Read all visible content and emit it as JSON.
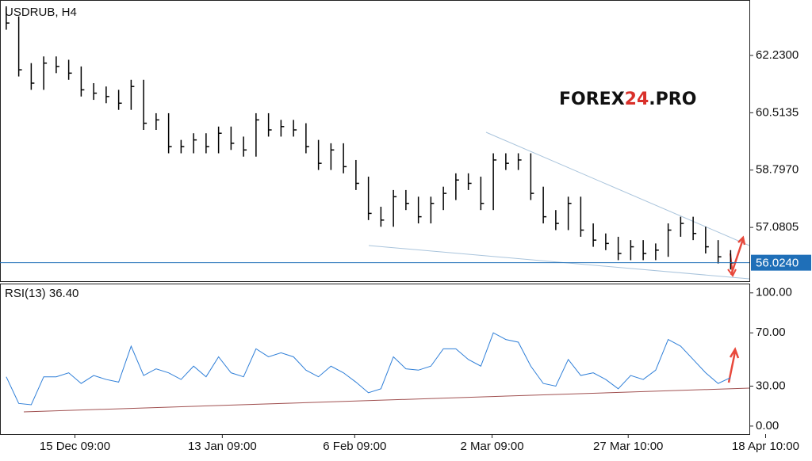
{
  "chart_data": [
    {
      "type": "ohlc",
      "title": "USDRUB, H4",
      "watermark": [
        "FOREX",
        "24",
        ".PRO"
      ],
      "color": "#000000",
      "high": [
        63.7,
        63.4,
        62.0,
        62.2,
        62.2,
        62.1,
        61.9,
        61.4,
        61.3,
        61.2,
        61.5,
        61.5,
        60.5,
        60.5,
        59.7,
        59.9,
        59.9,
        60.1,
        60.1,
        59.8,
        60.5,
        60.5,
        60.3,
        60.3,
        60.2,
        59.7,
        59.6,
        59.6,
        59.1,
        58.6,
        57.7,
        58.2,
        58.2,
        58.0,
        58.0,
        58.3,
        58.7,
        58.7,
        58.6,
        59.3,
        59.3,
        59.3,
        59.3,
        58.3,
        57.6,
        58.0,
        58.0,
        57.2,
        56.9,
        56.8,
        56.7,
        56.7,
        56.6,
        57.2,
        57.4,
        57.4,
        57.1,
        56.7,
        56.4
      ],
      "low": [
        63.0,
        61.6,
        61.2,
        61.2,
        61.7,
        61.5,
        61.0,
        60.9,
        60.8,
        60.6,
        60.6,
        60.0,
        60.0,
        59.3,
        59.3,
        59.3,
        59.3,
        59.3,
        59.4,
        59.2,
        59.2,
        59.8,
        59.8,
        59.8,
        59.3,
        58.8,
        58.8,
        58.7,
        58.2,
        57.3,
        57.1,
        57.1,
        57.6,
        57.2,
        57.2,
        57.6,
        57.9,
        58.2,
        57.6,
        57.6,
        58.8,
        58.8,
        57.9,
        57.2,
        57.0,
        57.0,
        56.8,
        56.5,
        56.4,
        56.1,
        56.1,
        56.1,
        56.1,
        56.2,
        56.8,
        56.7,
        56.3,
        56.0,
        55.82
      ],
      "close": [
        63.2,
        61.8,
        61.4,
        62.0,
        61.9,
        61.7,
        61.2,
        61.1,
        61.0,
        60.8,
        61.3,
        60.2,
        60.3,
        59.5,
        59.5,
        59.7,
        59.5,
        59.9,
        59.6,
        59.4,
        60.3,
        60.0,
        60.1,
        60.0,
        59.5,
        59.0,
        59.4,
        58.9,
        58.4,
        57.5,
        57.3,
        58.0,
        57.8,
        57.4,
        57.8,
        58.1,
        58.5,
        58.4,
        57.8,
        59.1,
        59.0,
        59.1,
        58.1,
        57.4,
        57.2,
        57.8,
        57.0,
        56.7,
        56.6,
        56.3,
        56.5,
        56.3,
        56.4,
        57.0,
        57.2,
        56.9,
        56.5,
        56.2,
        56.02
      ],
      "current": {
        "value": 56.024,
        "label": "56.0240"
      },
      "xlim": [
        -0.5,
        59.5
      ],
      "ylim": [
        55.47,
        63.89
      ],
      "yticks": [
        {
          "value": 62.23,
          "label": "62.2300"
        },
        {
          "value": 60.5135,
          "label": "60.5135"
        },
        {
          "value": 58.797,
          "label": "58.7970"
        },
        {
          "value": 57.0805,
          "label": "57.0805"
        }
      ]
    },
    {
      "type": "line",
      "title": "RSI(13) 36.40",
      "color": "#2f7fd8",
      "values": [
        37,
        17,
        16,
        37,
        37,
        40,
        32,
        38,
        35,
        33,
        60,
        38,
        43,
        40,
        35,
        45,
        37,
        52,
        40,
        37,
        58,
        52,
        55,
        52,
        42,
        37,
        45,
        40,
        33,
        25,
        28,
        52,
        43,
        42,
        45,
        58,
        58,
        50,
        45,
        70,
        65,
        63,
        45,
        32,
        30,
        50,
        38,
        40,
        35,
        28,
        38,
        35,
        42,
        65,
        60,
        50,
        40,
        32,
        36.4
      ],
      "xlim": [
        -0.5,
        59.5
      ],
      "ylim": [
        -6,
        107
      ],
      "yticks": [
        {
          "value": 100,
          "label": "100.00"
        },
        {
          "value": 70,
          "label": "70.00"
        },
        {
          "value": 30,
          "label": "30.00"
        },
        {
          "value": 0,
          "label": "0.00"
        }
      ],
      "xticks": [
        {
          "value": 5.5,
          "label": "15 Dec 09:00"
        },
        {
          "value": 17.3,
          "label": "13 Jan 09:00"
        },
        {
          "value": 27.9,
          "label": "6 Feb 09:00"
        },
        {
          "value": 38.9,
          "label": "2 Mar 09:00"
        },
        {
          "value": 49.8,
          "label": "27 Mar 10:00"
        },
        {
          "value": 60.8,
          "label": "18 Apr 10:00"
        }
      ]
    }
  ]
}
